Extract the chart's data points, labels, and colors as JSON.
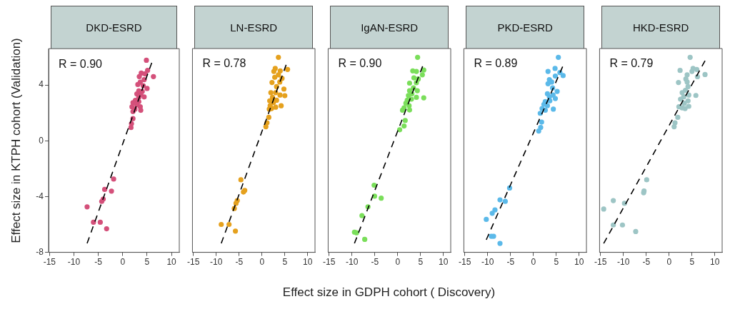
{
  "chart_data": [
    {
      "type": "scatter",
      "title": "DKD-ESRD",
      "ylabel": "Effect size  in KTPH cohort (Validation)",
      "xlim": [
        -15.2,
        11.6
      ],
      "ylim": [
        -8,
        6.6
      ],
      "xticks": [
        -15,
        -10,
        -5,
        0,
        5,
        10
      ],
      "yticks": [
        -8,
        -4,
        0,
        4
      ],
      "marker": "circle",
      "legend": false,
      "annotations": [
        "R = 0.90"
      ],
      "series": [
        {
          "color": "#d4507a",
          "x": [
            4.86,
            5.1,
            3.8,
            4.6,
            6.3,
            3.4,
            4.4,
            3.6,
            3.1,
            4.2,
            5.0,
            3.3,
            4.0,
            2.9,
            3.7,
            4.4,
            3.3,
            2.6,
            2.1,
            3.3,
            2.9,
            1.9,
            3.6,
            2.5,
            3.7,
            2.1,
            2.1,
            1.8,
            1.7,
            -1.86,
            -2.3,
            -3.7,
            -4.0,
            -4.3,
            -7.3,
            -6.0,
            -4.6,
            -3.3
          ],
          "values": [
            5.77,
            5.05,
            4.85,
            4.8,
            4.6,
            4.6,
            4.38,
            4.2,
            4.03,
            3.95,
            3.75,
            3.58,
            3.53,
            3.36,
            3.31,
            3.14,
            3.1,
            2.9,
            2.73,
            2.8,
            2.57,
            2.43,
            2.43,
            2.26,
            2.18,
            2.09,
            1.59,
            1.22,
            0.95,
            -2.75,
            -3.61,
            -3.49,
            -4.19,
            -4.35,
            -4.74,
            -5.84,
            -5.84,
            -6.31
          ]
        },
        {
          "type": "line",
          "color": "#000000",
          "line_style": "dashed",
          "marker": "none",
          "x": [
            -7.3,
            5.95
          ],
          "values": [
            -7.36,
            5.59
          ]
        }
      ]
    },
    {
      "type": "scatter",
      "title": "LN-ESRD",
      "xlim": [
        -15.2,
        11.6
      ],
      "ylim": [
        -8,
        6.6
      ],
      "xticks": [
        -15,
        -10,
        -5,
        0,
        5,
        10
      ],
      "yticks": [
        -8,
        -4,
        0,
        4
      ],
      "tick_labels": "x",
      "marker": "circle",
      "legend": false,
      "annotations": [
        "R = 0.78"
      ],
      "series": [
        {
          "color": "#e5a11e",
          "x": [
            3.6,
            5.6,
            2.9,
            4.0,
            2.6,
            3.6,
            4.4,
            2.8,
            3.9,
            2.2,
            3.2,
            4.8,
            1.95,
            3.0,
            3.95,
            5.0,
            2.3,
            1.7,
            3.2,
            2.5,
            1.8,
            4.2,
            3.0,
            1.6,
            2.1,
            1.5,
            1.1,
            0.86,
            -4.6,
            -3.76,
            -4.05,
            -5.4,
            -5.67,
            -6.05,
            -8.9,
            -7.2,
            -5.8
          ],
          "values": [
            5.97,
            5.1,
            5.17,
            5.0,
            4.96,
            4.72,
            4.46,
            4.54,
            4.2,
            4.17,
            3.87,
            3.7,
            3.44,
            3.44,
            3.27,
            3.22,
            3.1,
            2.85,
            2.9,
            2.73,
            2.5,
            2.5,
            2.4,
            2.26,
            2.3,
            1.67,
            1.28,
            1.0,
            -2.8,
            -3.56,
            -3.68,
            -4.29,
            -4.49,
            -4.86,
            -6.0,
            -6.0,
            -6.48
          ]
        },
        {
          "type": "line",
          "color": "#000000",
          "line_style": "dashed",
          "marker": "none",
          "x": [
            -8.9,
            5.29
          ],
          "values": [
            -7.36,
            5.43
          ]
        }
      ]
    },
    {
      "type": "scatter",
      "title": "IgAN-ESRD",
      "xlabel": "Effect size in GDPH cohort ( Discovery)",
      "xlim": [
        -15.2,
        11.6
      ],
      "ylim": [
        -8,
        6.6
      ],
      "xticks": [
        -15,
        -10,
        -5,
        0,
        5,
        10
      ],
      "yticks": [
        -8,
        -4,
        0,
        4
      ],
      "tick_labels": "x",
      "marker": "circle",
      "legend": false,
      "annotations": [
        "R = 0.90"
      ],
      "series": [
        {
          "color": "#7ade5a",
          "x": [
            4.36,
            3.3,
            4.1,
            5.7,
            5.4,
            3.55,
            4.5,
            2.6,
            4.1,
            3.45,
            2.6,
            4.3,
            3.1,
            2.35,
            4.1,
            5.7,
            2.1,
            3.0,
            1.8,
            2.5,
            1.4,
            2.6,
            1.06,
            1.65,
            1.4,
            0.44,
            -5.15,
            -5.05,
            -3.6,
            -6.5,
            -7.8,
            -9.45,
            -9.0,
            -7.2
          ],
          "values": [
            5.97,
            5.0,
            4.96,
            5.06,
            4.72,
            4.5,
            4.42,
            4.12,
            4.15,
            3.78,
            3.58,
            3.58,
            3.36,
            3.24,
            3.1,
            3.07,
            2.9,
            2.97,
            2.68,
            2.51,
            2.35,
            2.2,
            2.18,
            1.45,
            1.05,
            0.78,
            -3.19,
            -3.98,
            -4.12,
            -4.74,
            -5.37,
            -6.55,
            -6.6,
            -7.07
          ]
        },
        {
          "type": "line",
          "color": "#000000",
          "line_style": "dashed",
          "marker": "none",
          "x": [
            -9.45,
            5.46
          ],
          "values": [
            -7.36,
            5.33
          ]
        }
      ]
    },
    {
      "type": "scatter",
      "title": "PKD-ESRD",
      "xlim": [
        -15.2,
        11.6
      ],
      "ylim": [
        -8,
        6.6
      ],
      "xticks": [
        -15,
        -10,
        -5,
        0,
        5,
        10
      ],
      "yticks": [
        -8,
        -4,
        0,
        4
      ],
      "tick_labels": "x",
      "marker": "circle",
      "legend": false,
      "annotations": [
        "R = 0.89"
      ],
      "series": [
        {
          "color": "#5bb9e9",
          "x": [
            5.46,
            3.2,
            4.74,
            5.8,
            6.5,
            4.8,
            3.5,
            3.2,
            4.0,
            4.2,
            5.2,
            3.07,
            4.3,
            3.5,
            4.8,
            2.6,
            3.6,
            2.3,
            3.07,
            4.36,
            1.9,
            2.6,
            1.5,
            1.8,
            1.6,
            1.16,
            -5.2,
            -7.3,
            -6.15,
            -8.4,
            -9.0,
            -10.3,
            -9.2,
            -8.7,
            -7.3
          ],
          "values": [
            5.97,
            4.96,
            5.17,
            4.88,
            4.66,
            4.63,
            4.37,
            4.08,
            4.2,
            3.78,
            3.53,
            3.36,
            3.27,
            3.14,
            3.02,
            2.8,
            2.85,
            2.6,
            2.51,
            2.26,
            2.3,
            2.18,
            1.96,
            1.33,
            0.95,
            0.69,
            -3.39,
            -4.24,
            -4.35,
            -4.96,
            -5.2,
            -5.64,
            -6.85,
            -6.85,
            -7.36
          ]
        },
        {
          "type": "line",
          "color": "#000000",
          "line_style": "dashed",
          "marker": "none",
          "x": [
            -10.3,
            6.4
          ],
          "values": [
            -7.1,
            5.3
          ]
        }
      ]
    },
    {
      "type": "scatter",
      "title": "HKD-ESRD",
      "xlim": [
        -15.2,
        11.6
      ],
      "ylim": [
        -8,
        6.6
      ],
      "xticks": [
        -15,
        -10,
        -5,
        0,
        5,
        10
      ],
      "yticks": [
        -8,
        -4,
        0,
        4
      ],
      "tick_labels": "x",
      "marker": "circle",
      "legend": false,
      "annotations": [
        "R = 0.79"
      ],
      "series": [
        {
          "color": "#9dc5c5",
          "x": [
            4.6,
            2.4,
            5.24,
            6.05,
            5.0,
            7.86,
            3.95,
            6.2,
            3.67,
            2.05,
            3.95,
            4.14,
            3.57,
            2.86,
            4.3,
            5.86,
            3.2,
            2.5,
            4.14,
            3.33,
            2.14,
            4.3,
            2.86,
            3.5,
            1.9,
            1.29,
            1.1,
            -4.9,
            -5.48,
            -5.57,
            -12.2,
            -9.76,
            -14.3,
            -12.2,
            -10.2,
            -7.3
          ],
          "values": [
            5.97,
            5.03,
            5.17,
            5.1,
            4.96,
            4.74,
            4.72,
            4.58,
            4.42,
            4.17,
            4.2,
            3.87,
            3.61,
            3.44,
            3.27,
            3.24,
            3.14,
            2.97,
            2.85,
            2.68,
            2.43,
            2.46,
            2.35,
            2.3,
            1.67,
            1.28,
            1.0,
            -2.8,
            -3.61,
            -3.73,
            -4.29,
            -4.49,
            -4.9,
            -6.04,
            -6.04,
            -6.51
          ]
        },
        {
          "type": "line",
          "color": "#000000",
          "line_style": "dashed",
          "marker": "none",
          "x": [
            -14.3,
            7.86
          ],
          "values": [
            -7.36,
            5.72
          ]
        }
      ]
    }
  ]
}
